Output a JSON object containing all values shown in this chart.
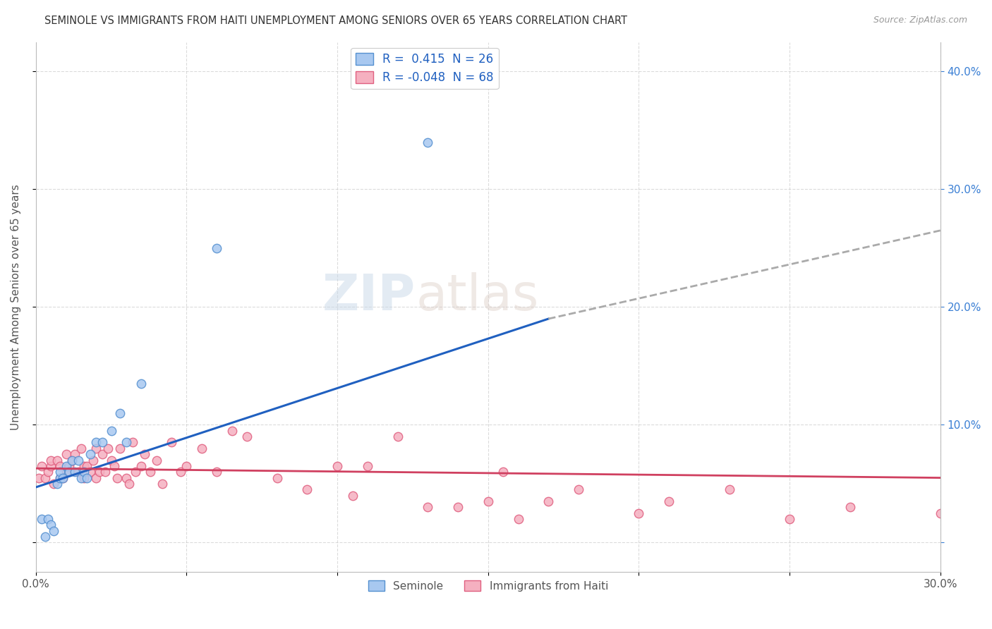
{
  "title": "SEMINOLE VS IMMIGRANTS FROM HAITI UNEMPLOYMENT AMONG SENIORS OVER 65 YEARS CORRELATION CHART",
  "source": "Source: ZipAtlas.com",
  "ylabel": "Unemployment Among Seniors over 65 years",
  "xlim": [
    0.0,
    0.3
  ],
  "ylim": [
    -0.025,
    0.425
  ],
  "yticks": [
    0.0,
    0.1,
    0.2,
    0.3,
    0.4
  ],
  "right_ytick_labels": [
    "",
    "10.0%",
    "20.0%",
    "30.0%",
    "40.0%"
  ],
  "left_ytick_labels": [
    "",
    "",
    "",
    "",
    ""
  ],
  "xticks": [
    0.0,
    0.05,
    0.1,
    0.15,
    0.2,
    0.25,
    0.3
  ],
  "xtick_labels": [
    "0.0%",
    "",
    "",
    "",
    "",
    "",
    "30.0%"
  ],
  "grid_color": "#cccccc",
  "background_color": "#ffffff",
  "seminole_color": "#a8c8f0",
  "haiti_color": "#f5b0c0",
  "seminole_edge_color": "#5590d0",
  "haiti_edge_color": "#e06080",
  "trend_seminole_color": "#2060c0",
  "trend_haiti_color": "#d04060",
  "trend_extend_color": "#aaaaaa",
  "legend_seminole_R": "0.415",
  "legend_seminole_N": "26",
  "legend_haiti_R": "-0.048",
  "legend_haiti_N": "68",
  "watermark_zip": "ZIP",
  "watermark_atlas": "atlas",
  "seminole_x": [
    0.002,
    0.003,
    0.004,
    0.005,
    0.006,
    0.007,
    0.008,
    0.008,
    0.009,
    0.01,
    0.011,
    0.012,
    0.013,
    0.014,
    0.015,
    0.016,
    0.017,
    0.018,
    0.02,
    0.022,
    0.025,
    0.028,
    0.03,
    0.035,
    0.06,
    0.13
  ],
  "seminole_y": [
    0.02,
    0.005,
    0.02,
    0.015,
    0.01,
    0.05,
    0.055,
    0.06,
    0.055,
    0.065,
    0.06,
    0.07,
    0.06,
    0.07,
    0.055,
    0.06,
    0.055,
    0.075,
    0.085,
    0.085,
    0.095,
    0.11,
    0.085,
    0.135,
    0.25,
    0.34
  ],
  "haiti_x": [
    0.001,
    0.002,
    0.003,
    0.004,
    0.005,
    0.005,
    0.006,
    0.007,
    0.008,
    0.008,
    0.009,
    0.01,
    0.01,
    0.011,
    0.012,
    0.013,
    0.014,
    0.015,
    0.016,
    0.016,
    0.017,
    0.018,
    0.019,
    0.02,
    0.02,
    0.021,
    0.022,
    0.023,
    0.024,
    0.025,
    0.026,
    0.027,
    0.028,
    0.03,
    0.031,
    0.032,
    0.033,
    0.035,
    0.036,
    0.038,
    0.04,
    0.042,
    0.045,
    0.048,
    0.05,
    0.055,
    0.06,
    0.065,
    0.07,
    0.08,
    0.09,
    0.1,
    0.105,
    0.11,
    0.12,
    0.13,
    0.14,
    0.15,
    0.155,
    0.16,
    0.17,
    0.18,
    0.2,
    0.21,
    0.23,
    0.25,
    0.27,
    0.3
  ],
  "haiti_y": [
    0.055,
    0.065,
    0.055,
    0.06,
    0.065,
    0.07,
    0.05,
    0.07,
    0.055,
    0.065,
    0.055,
    0.06,
    0.075,
    0.065,
    0.07,
    0.075,
    0.06,
    0.08,
    0.055,
    0.065,
    0.065,
    0.06,
    0.07,
    0.055,
    0.08,
    0.06,
    0.075,
    0.06,
    0.08,
    0.07,
    0.065,
    0.055,
    0.08,
    0.055,
    0.05,
    0.085,
    0.06,
    0.065,
    0.075,
    0.06,
    0.07,
    0.05,
    0.085,
    0.06,
    0.065,
    0.08,
    0.06,
    0.095,
    0.09,
    0.055,
    0.045,
    0.065,
    0.04,
    0.065,
    0.09,
    0.03,
    0.03,
    0.035,
    0.06,
    0.02,
    0.035,
    0.045,
    0.025,
    0.035,
    0.045,
    0.02,
    0.03,
    0.025
  ],
  "trend_sem_x0": 0.0,
  "trend_sem_y0": 0.047,
  "trend_sem_x1": 0.17,
  "trend_sem_y1": 0.19,
  "trend_sem_dash_x1": 0.3,
  "trend_sem_dash_y1": 0.265,
  "trend_haiti_x0": 0.0,
  "trend_haiti_y0": 0.063,
  "trend_haiti_x1": 0.3,
  "trend_haiti_y1": 0.055
}
